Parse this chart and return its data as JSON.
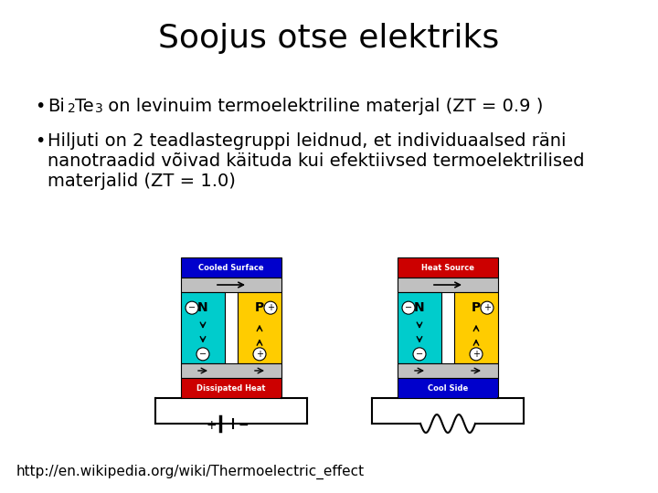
{
  "title": "Soojus otse elektriks",
  "title_fontsize": 26,
  "background_color": "#ffffff",
  "bullet_fontsize": 14,
  "url_fontsize": 11,
  "url": "http://en.wikipedia.org/wiki/Thermoelectric_effect",
  "bullet2_line1": "Hiljuti on 2 teadlastegruppi leidnud, et individuaalsed räni",
  "bullet2_line2": "nanotraadid võivad käituda kui efektiivsed termoelektrilised",
  "bullet2_line3": "materjalid (ZT = 1.0)",
  "left_top_color": "#0000cc",
  "left_top_label": "Cooled Surface",
  "left_bot_color": "#cc0000",
  "left_bot_label": "Dissipated Heat",
  "right_top_color": "#cc0000",
  "right_top_label": "Heat Source",
  "right_bot_color": "#0000cc",
  "right_bot_label": "Cool Side",
  "n_color": "#00cccc",
  "p_color": "#ffcc00",
  "plate_color": "#c0c0c0"
}
